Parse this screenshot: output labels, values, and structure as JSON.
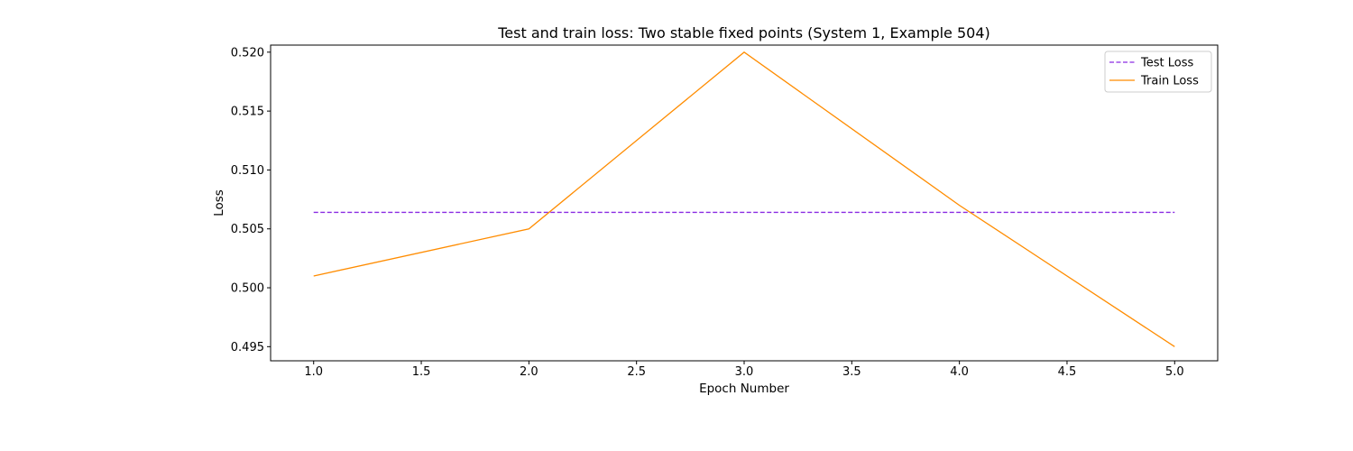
{
  "chart_data": {
    "type": "line",
    "title": "Test and train loss: Two stable fixed points (System 1, Example 504)",
    "xlabel": "Epoch Number",
    "ylabel": "Loss",
    "xlim": [
      0.8,
      5.2
    ],
    "ylim": [
      0.4938,
      0.5206
    ],
    "xticks": [
      1.0,
      1.5,
      2.0,
      2.5,
      3.0,
      3.5,
      4.0,
      4.5,
      5.0
    ],
    "xtick_labels": [
      "1.0",
      "1.5",
      "2.0",
      "2.5",
      "3.0",
      "3.5",
      "4.0",
      "4.5",
      "5.0"
    ],
    "yticks": [
      0.495,
      0.5,
      0.505,
      0.51,
      0.515,
      0.52
    ],
    "ytick_labels": [
      "0.495",
      "0.500",
      "0.505",
      "0.510",
      "0.515",
      "0.520"
    ],
    "grid": false,
    "legend_position": "top-right",
    "x": [
      1,
      2,
      3,
      4,
      5
    ],
    "series": [
      {
        "name": "Test Loss",
        "values": [
          0.5064,
          0.5064,
          0.5064,
          0.5064,
          0.5064
        ],
        "color": "#8a2be2",
        "style": "dashed"
      },
      {
        "name": "Train Loss",
        "values": [
          0.501,
          0.505,
          0.52,
          0.507,
          0.495
        ],
        "color": "#ff8c00",
        "style": "solid"
      }
    ]
  }
}
